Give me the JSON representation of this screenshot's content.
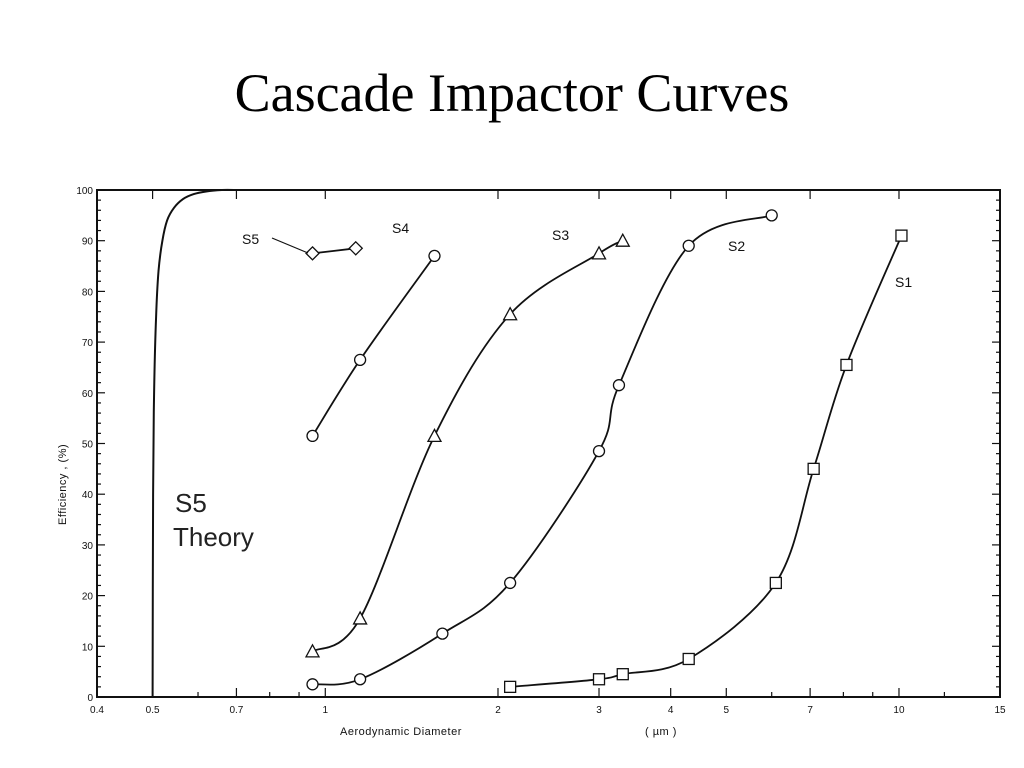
{
  "slide": {
    "title": "Cascade Impactor Curves"
  },
  "chart_data": {
    "type": "line",
    "title": "",
    "xlabel": "Aerodynamic  Diameter",
    "xunit": "( µm )",
    "ylabel": "Efficiency   ,   (%)",
    "x_scale": "log",
    "xlim": [
      0.4,
      15
    ],
    "ylim": [
      0,
      100
    ],
    "x_ticks": [
      0.4,
      0.5,
      0.7,
      1,
      2,
      3,
      4,
      5,
      7,
      10,
      15
    ],
    "x_tick_labels": [
      "0.4",
      "0.5",
      "0.7",
      "1",
      "2",
      "3",
      "4",
      "5",
      "7",
      "10",
      "15"
    ],
    "y_ticks": [
      0,
      10,
      20,
      30,
      40,
      50,
      60,
      70,
      80,
      90,
      100
    ],
    "y_tick_labels": [
      "0",
      "10",
      "20",
      "30",
      "40",
      "50",
      "60",
      "70",
      "80",
      "90",
      "100"
    ],
    "grid": false,
    "series": [
      {
        "name": "S1",
        "marker": "square",
        "x": [
          2.1,
          3.0,
          3.3,
          4.3,
          6.1,
          7.1,
          8.1,
          10.1
        ],
        "y": [
          2,
          3.5,
          4.5,
          7.5,
          22.5,
          45,
          65.5,
          91
        ]
      },
      {
        "name": "S2",
        "marker": "circle",
        "x": [
          0.95,
          1.15,
          1.6,
          2.1,
          3.0,
          3.25,
          4.3,
          6.0
        ],
        "y": [
          2.5,
          3.5,
          12.5,
          22.5,
          48.5,
          61.5,
          89,
          95
        ]
      },
      {
        "name": "S3",
        "marker": "triangle",
        "x": [
          0.95,
          1.15,
          1.55,
          2.1,
          3.0,
          3.3
        ],
        "y": [
          9,
          15.5,
          51.5,
          75.5,
          87.5,
          90
        ]
      },
      {
        "name": "S4",
        "marker": "circle",
        "x": [
          0.95,
          1.15,
          1.55
        ],
        "y": [
          51.5,
          66.5,
          87
        ]
      },
      {
        "name": "S5",
        "marker": "diamond",
        "x": [
          0.95,
          1.13
        ],
        "y": [
          87.5,
          88.5
        ]
      }
    ],
    "theory_curve": {
      "name": "S5 Theory",
      "x": [
        0.5,
        0.501,
        0.503,
        0.507,
        0.512,
        0.52,
        0.53,
        0.545,
        0.565,
        0.59,
        0.62,
        0.66,
        0.7
      ],
      "y": [
        0,
        40,
        60,
        75,
        84,
        90,
        94,
        96.5,
        98.2,
        99.2,
        99.7,
        100,
        100
      ]
    },
    "annotations": [
      "S5",
      "S4",
      "S3",
      "S2",
      "S1",
      "S5",
      "Theory"
    ]
  }
}
